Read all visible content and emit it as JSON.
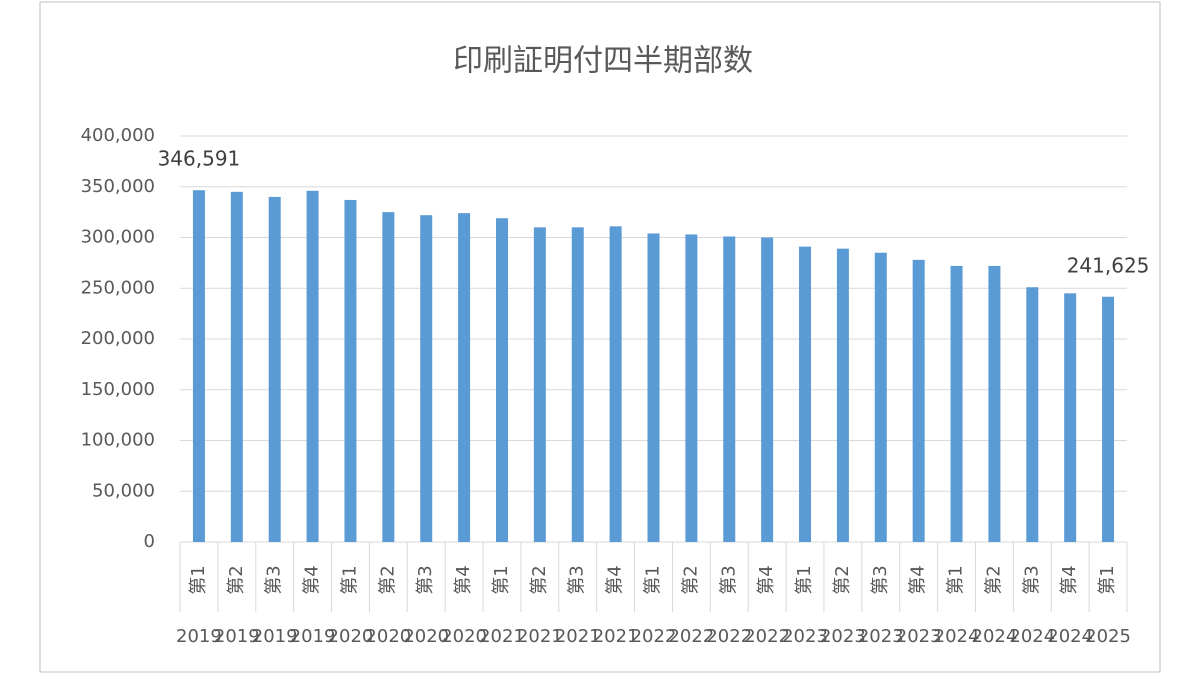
{
  "chart_data": {
    "type": "bar",
    "title": "印刷証明付四半期部数",
    "categories": [
      "第1",
      "第2",
      "第3",
      "第4",
      "第1",
      "第2",
      "第3",
      "第4",
      "第1",
      "第2",
      "第3",
      "第4",
      "第1",
      "第2",
      "第3",
      "第4",
      "第1",
      "第2",
      "第3",
      "第4",
      "第1",
      "第2",
      "第3",
      "第4",
      "第1"
    ],
    "category_years": [
      "2019",
      "2019",
      "2019",
      "2019",
      "2020",
      "2020",
      "2020",
      "2020",
      "2021",
      "2021",
      "2021",
      "2021",
      "2022",
      "2022",
      "2022",
      "2022",
      "2023",
      "2023",
      "2023",
      "2023",
      "2024",
      "2024",
      "2024",
      "2024",
      "2025"
    ],
    "values": [
      346591,
      345000,
      340000,
      346000,
      337000,
      325000,
      322000,
      324000,
      319000,
      310000,
      310000,
      311000,
      304000,
      303000,
      301000,
      300000,
      291000,
      289000,
      285000,
      278000,
      272000,
      272000,
      251000,
      245000,
      241625
    ],
    "value_labels": [
      "346,591",
      null,
      null,
      null,
      null,
      null,
      null,
      null,
      null,
      null,
      null,
      null,
      null,
      null,
      null,
      null,
      null,
      null,
      null,
      null,
      null,
      null,
      null,
      null,
      "241,625"
    ],
    "color": "#5b9bd5",
    "ylim": [
      0,
      400000
    ],
    "yticks": [
      0,
      {
        "value": 50000,
        "label": "50,000"
      },
      {
        "value": 100000,
        "label": "100,000"
      },
      {
        "value": 150000,
        "label": "150,000"
      },
      {
        "value": 200000,
        "label": "200,000"
      },
      {
        "value": 250000,
        "label": "250,000"
      },
      {
        "value": 300000,
        "label": "300,000"
      },
      {
        "value": 350000,
        "label": "350,000"
      },
      {
        "value": 400000,
        "label": "400,000"
      }
    ],
    "grid": true
  }
}
